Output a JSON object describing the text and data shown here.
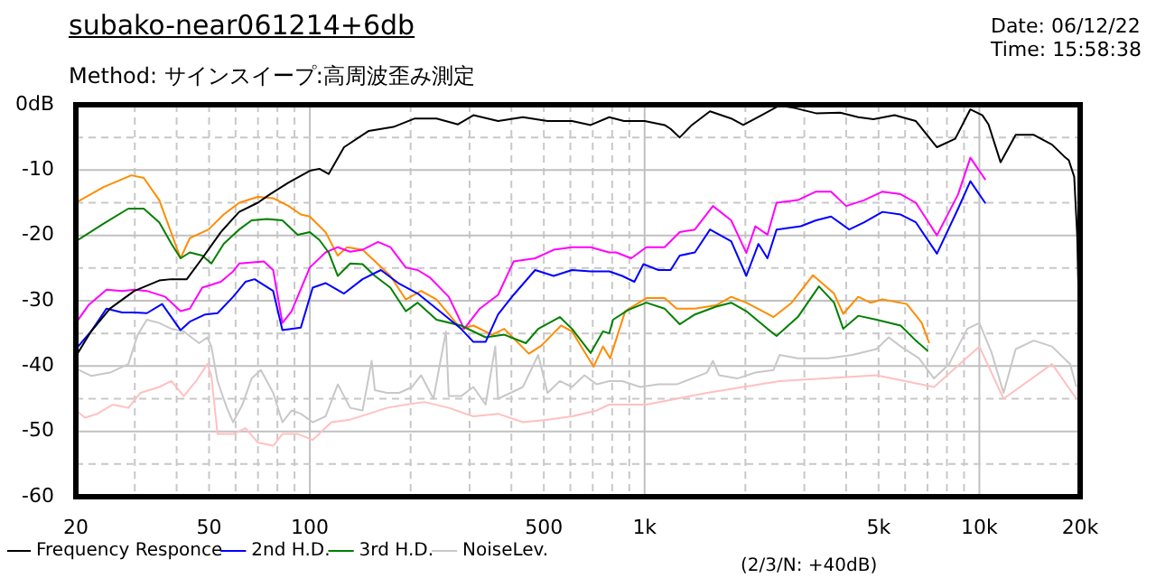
{
  "chart_data": {
    "type": "line",
    "title": "subako-near061214+6db",
    "subtitle": "Method: サインスイープ:高周波歪み測定",
    "annotations": [
      "Date: 06/12/22",
      "Time: 15:58:38",
      "(2/3/N: +40dB)"
    ],
    "log": "x",
    "grid": true,
    "legend": "bottom left",
    "xlim": [
      20,
      20000
    ],
    "ylim": [
      -60,
      0
    ],
    "xticks": [
      20,
      {
        "value": 30,
        "label": null
      },
      {
        "value": 40,
        "label": null
      },
      50,
      {
        "value": 60,
        "label": null
      },
      {
        "value": 70,
        "label": null
      },
      {
        "value": 80,
        "label": null
      },
      {
        "value": 90,
        "label": null
      },
      100,
      {
        "value": 200,
        "label": null
      },
      {
        "value": 300,
        "label": null
      },
      {
        "value": 400,
        "label": null
      },
      500,
      {
        "value": 600,
        "label": null
      },
      {
        "value": 700,
        "label": null
      },
      {
        "value": 800,
        "label": null
      },
      {
        "value": 900,
        "label": null
      },
      {
        "value": 1000,
        "label": "1k"
      },
      {
        "value": 2000,
        "label": null
      },
      {
        "value": 3000,
        "label": null
      },
      {
        "value": 4000,
        "label": null
      },
      {
        "value": 5000,
        "label": "5k"
      },
      {
        "value": 6000,
        "label": null
      },
      {
        "value": 7000,
        "label": null
      },
      {
        "value": 8000,
        "label": null
      },
      {
        "value": 9000,
        "label": null
      },
      {
        "value": 10000,
        "label": "10k"
      },
      {
        "value": 20000,
        "label": "20k"
      }
    ],
    "yticks": [
      {
        "value": 0,
        "label": "0dB"
      },
      {
        "value": -5,
        "label": null
      },
      -10,
      {
        "value": -15,
        "label": null
      },
      -20,
      {
        "value": -25,
        "label": null
      },
      -30,
      {
        "value": -35,
        "label": null
      },
      -40,
      {
        "value": -45,
        "label": null
      },
      -50,
      {
        "value": -55,
        "label": null
      },
      -60
    ],
    "series": [
      {
        "name": "Frequency Responce",
        "color": "#000000",
        "x": [
          20,
          22.2,
          25.3,
          29.9,
          35.5,
          38.6,
          42.9,
          47.7,
          54.2,
          61.5,
          69.9,
          76,
          86.4,
          100,
          106.8,
          113.8,
          126.5,
          150,
          177.6,
          206,
          239,
          277,
          308,
          365,
          433,
          513,
          607,
          690,
          784,
          868,
          1000,
          1147,
          1196,
          1273,
          1384,
          1568,
          1814,
          1971,
          2234,
          2531,
          2809,
          3249,
          3838,
          4347,
          4826,
          5580,
          6460,
          7470,
          8470,
          9400,
          10210,
          10650,
          11570,
          12840,
          14540,
          16480,
          17920,
          18500,
          19200,
          19600,
          19800,
          19900,
          20000
        ],
        "values": [
          -38.5,
          -34.7,
          -31.2,
          -28.5,
          -26.9,
          -26.7,
          -26.7,
          -23.5,
          -19.5,
          -16.4,
          -15,
          -13.7,
          -11.9,
          -10.1,
          -9.8,
          -10.6,
          -6.5,
          -4,
          -3.4,
          -2.1,
          -2.1,
          -3,
          -1.6,
          -2.5,
          -1.9,
          -2.5,
          -2.5,
          -3.1,
          -1.9,
          -2.5,
          -2.5,
          -3.1,
          -3.7,
          -5,
          -3.1,
          -1,
          -2.1,
          -3.1,
          -1.6,
          -0.1,
          -0.5,
          -1.3,
          -1.2,
          -1.9,
          -2.2,
          -1.6,
          -2.5,
          -6.5,
          -5.2,
          -0.7,
          -1.6,
          -3,
          -8.8,
          -4.6,
          -4.6,
          -6.1,
          -7.9,
          -8.5,
          -11,
          -20,
          -30,
          -42,
          -51
        ]
      },
      {
        "name": "2nd H.D.",
        "color": "#0000ff",
        "x": [
          20,
          22.2,
          24.7,
          27.5,
          29.9,
          32.6,
          36.2,
          41.1,
          43.8,
          48.7,
          53,
          59,
          64.2,
          68.4,
          77.7,
          82.8,
          94,
          102,
          111.4,
          126.5,
          143.7,
          163,
          185,
          210,
          239,
          283,
          308,
          335,
          365,
          406,
          471,
          535,
          607,
          690,
          784,
          857,
          932,
          992,
          1100,
          1196,
          1273,
          1413,
          1568,
          1814,
          2013,
          2188,
          2328,
          2479,
          2928,
          3249,
          3606,
          4085,
          4530,
          5136,
          5820,
          6460,
          7470,
          8640,
          9400,
          10430
        ],
        "values": [
          -37.4,
          -34.7,
          -31.2,
          -31.8,
          -31.8,
          -31.9,
          -30.5,
          -34.5,
          -33.2,
          -32.1,
          -31.9,
          -29.4,
          -27.1,
          -26.7,
          -28.5,
          -34.5,
          -34.1,
          -28,
          -27.3,
          -28.9,
          -26.7,
          -25.3,
          -27.4,
          -28.9,
          -31.2,
          -34.3,
          -36.3,
          -36.3,
          -32.1,
          -29.1,
          -25.3,
          -26.2,
          -25.3,
          -25.5,
          -25.5,
          -26.2,
          -27.1,
          -24.4,
          -25.3,
          -25.3,
          -23.1,
          -22.6,
          -19.1,
          -20.9,
          -26.2,
          -21.3,
          -23.5,
          -19.1,
          -18.6,
          -17.7,
          -17.1,
          -19.1,
          -18,
          -16.4,
          -16.8,
          -18,
          -22.8,
          -15.9,
          -11.7,
          -15.1
        ]
      },
      {
        "name": "3rd H.D.",
        "color": "#008000",
        "x": [
          20,
          24.2,
          28.7,
          31.9,
          35.5,
          38.6,
          41.1,
          43.8,
          47.7,
          50.8,
          55.3,
          61.5,
          67,
          74.5,
          82.8,
          92,
          100,
          106.8,
          113.8,
          121.2,
          132,
          143.7,
          156.4,
          174,
          193.4,
          210,
          239,
          283,
          335,
          381,
          442,
          481,
          558,
          607,
          690,
          751,
          784,
          805,
          894,
          1012,
          1147,
          1273,
          1413,
          1634,
          1814,
          2013,
          2328,
          2479,
          2868,
          3317,
          3681,
          3920,
          4347,
          4930,
          5820,
          6460,
          7020
        ],
        "values": [
          -20.9,
          -18.2,
          -15.9,
          -15.9,
          -18,
          -21.3,
          -23.5,
          -22.6,
          -23.1,
          -24.3,
          -21.3,
          -19.1,
          -17.7,
          -17.5,
          -17.7,
          -19.9,
          -19.5,
          -20.7,
          -22.6,
          -26.2,
          -24.3,
          -24.4,
          -26.2,
          -28,
          -31.6,
          -30.3,
          -32.9,
          -33.8,
          -35.6,
          -35.2,
          -36.5,
          -34.3,
          -32.5,
          -34.3,
          -38,
          -34.7,
          -35,
          -32.9,
          -31.4,
          -30.3,
          -31.2,
          -33.6,
          -32.1,
          -30.9,
          -30.3,
          -31.6,
          -34.3,
          -35.4,
          -32.5,
          -27.8,
          -30.3,
          -34.3,
          -32.3,
          -32.9,
          -33.8,
          -36.1,
          -37.7
        ]
      },
      {
        "name": "NoiseLev.",
        "color": "#c8c8c8",
        "x": [
          20,
          22.2,
          25.3,
          28.7,
          30.6,
          32.6,
          35.5,
          38.6,
          42,
          46.7,
          49.4,
          50.8,
          53,
          56.5,
          59,
          62.9,
          67,
          71.4,
          77.7,
          82.8,
          88.2,
          94,
          102,
          111.4,
          121.2,
          132,
          143.7,
          153,
          156.4,
          170,
          185,
          202,
          215,
          234,
          255,
          260,
          283,
          308,
          335,
          358,
          365,
          398,
          433,
          481,
          513,
          558,
          607,
          661,
          720,
          784,
          857,
          971,
          1100,
          1247,
          1384,
          1536,
          1600,
          1669,
          1891,
          2142,
          2427,
          2531,
          2868,
          3530,
          4170,
          4930,
          5360,
          5820,
          6600,
          7320,
          8120,
          9200,
          10000,
          10870,
          11810,
          12840,
          14540,
          16480,
          18670,
          19500
        ],
        "values": [
          -40.4,
          -41.5,
          -41,
          -39.7,
          -35.2,
          -32.9,
          -33.4,
          -34.3,
          -34.7,
          -36.5,
          -35.6,
          -37,
          -42.3,
          -46.4,
          -48.6,
          -45.9,
          -41.9,
          -40.6,
          -44.1,
          -48.6,
          -46.8,
          -47.3,
          -48.6,
          -47.7,
          -42.8,
          -46.4,
          -46.8,
          -39.2,
          -43.7,
          -44.1,
          -44.1,
          -43.2,
          -41.4,
          -45,
          -34.7,
          -44.6,
          -44.6,
          -43.2,
          -45.9,
          -37,
          -45,
          -44.1,
          -43.2,
          -38.3,
          -44.1,
          -42.3,
          -43.2,
          -41.4,
          -42.8,
          -42.3,
          -42.3,
          -43.2,
          -42.8,
          -42.8,
          -41.9,
          -41,
          -39.2,
          -41.4,
          -41.9,
          -41,
          -40.6,
          -38.3,
          -38.8,
          -38.8,
          -38.3,
          -37.4,
          -35.6,
          -37,
          -38.8,
          -41.9,
          -39.7,
          -34.3,
          -33.4,
          -37.9,
          -44.1,
          -37.4,
          -36.1,
          -37,
          -39.7,
          -43.2
        ]
      },
      {
        "color": "#ff00ff",
        "x": [
          20,
          21.8,
          24.7,
          27.5,
          29.9,
          32.6,
          37,
          41.1,
          43.8,
          47.7,
          54.2,
          59,
          61.5,
          72.9,
          77.7,
          82.8,
          88.2,
          100,
          111.4,
          121.2,
          132,
          143.7,
          159.8,
          174,
          193.4,
          210,
          229,
          260,
          289,
          322,
          365,
          406,
          471,
          535,
          607,
          690,
          784,
          822,
          912,
          1012,
          1147,
          1273,
          1413,
          1600,
          1814,
          2013,
          2142,
          2328,
          2479,
          2868,
          3249,
          3606,
          4000,
          4530,
          5136,
          5820,
          6460,
          7470,
          8640,
          9400,
          10430
        ],
        "values": [
          -33.4,
          -30.7,
          -28.3,
          -28.5,
          -28.3,
          -28.5,
          -29.4,
          -31.6,
          -31.2,
          -28,
          -27.1,
          -25.5,
          -24.3,
          -24,
          -25.3,
          -33.4,
          -31.6,
          -24.9,
          -22.6,
          -21.8,
          -22.5,
          -22.2,
          -21,
          -21.8,
          -24.9,
          -25.3,
          -26.5,
          -29.4,
          -34.3,
          -31.2,
          -29.1,
          -24,
          -23.5,
          -22.2,
          -21.8,
          -21.8,
          -22.6,
          -22.6,
          -23.5,
          -21.8,
          -21.8,
          -19.5,
          -19.1,
          -15.5,
          -17.7,
          -22.7,
          -18.6,
          -19.9,
          -15,
          -14.6,
          -13.3,
          -13.3,
          -15.5,
          -14.6,
          -13.3,
          -13.7,
          -15,
          -20,
          -13.7,
          -8.1,
          -11.5
        ]
      },
      {
        "color": "#ff8c00",
        "x": [
          20,
          24.2,
          29.3,
          31.9,
          35.5,
          41.1,
          43.8,
          49.8,
          55.3,
          61.5,
          69.9,
          77.7,
          86.4,
          94,
          100,
          111.4,
          121.2,
          129.2,
          143.7,
          159.8,
          174,
          193.4,
          215,
          239,
          283,
          308,
          350,
          381,
          451,
          491,
          563,
          607,
          704,
          751,
          789,
          875,
          1012,
          1147,
          1247,
          1413,
          1634,
          1814,
          2013,
          2328,
          2427,
          2750,
          3182,
          3681,
          3920,
          4347,
          4726,
          5136,
          6070,
          6730,
          7080
        ],
        "values": [
          -15,
          -12.6,
          -10.8,
          -11.2,
          -14.6,
          -23.5,
          -20.4,
          -19.1,
          -16.8,
          -15,
          -14.1,
          -14.3,
          -15.5,
          -16.8,
          -17.1,
          -19.5,
          -23.1,
          -21.8,
          -22.2,
          -24.4,
          -26.2,
          -29.8,
          -28.5,
          -29.8,
          -34.3,
          -33.8,
          -35.2,
          -34.3,
          -38.1,
          -36.9,
          -33.8,
          -34.7,
          -40.1,
          -37,
          -38.8,
          -31.6,
          -29.6,
          -29.6,
          -31.2,
          -31.2,
          -30.7,
          -29.4,
          -30.3,
          -32,
          -32.5,
          -30.3,
          -26.1,
          -28.9,
          -32,
          -29.4,
          -30.3,
          -29.8,
          -30.5,
          -33.4,
          -36.5
        ]
      },
      {
        "color": "#ffc0c0",
        "x": [
          20,
          21.3,
          23.2,
          25.8,
          28.7,
          31.2,
          35.5,
          38.6,
          42,
          45.7,
          49.4,
          50.8,
          53,
          59,
          64.2,
          69.9,
          77.7,
          82.8,
          92,
          102,
          116,
          132,
          150,
          170,
          193.4,
          220,
          260,
          308,
          365,
          433,
          513,
          607,
          720,
          784,
          1012,
          1536,
          2531,
          4930,
          7320,
          10000,
          11810,
          16480,
          19500
        ],
        "values": [
          -46.8,
          -47.9,
          -47.3,
          -45.9,
          -46.4,
          -44.1,
          -43.2,
          -42.3,
          -44.6,
          -42.3,
          -39.7,
          -41.5,
          -50.4,
          -50.4,
          -49.5,
          -51.7,
          -52.2,
          -50.4,
          -50.4,
          -51.3,
          -48.6,
          -48.2,
          -47.3,
          -46.4,
          -45.9,
          -45.5,
          -46.4,
          -47.7,
          -47.3,
          -48.6,
          -48.2,
          -47.7,
          -46.8,
          -45.9,
          -45.9,
          -44.1,
          -42.3,
          -41.4,
          -43.2,
          -37,
          -45,
          -39.7,
          -45
        ]
      }
    ]
  }
}
